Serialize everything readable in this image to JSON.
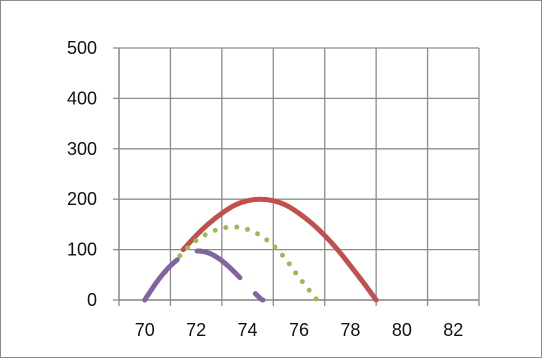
{
  "chart_data": {
    "type": "line",
    "title": "",
    "xlabel": "",
    "ylabel": "",
    "xlim": [
      69,
      83
    ],
    "ylim": [
      0,
      500
    ],
    "x_ticks": [
      70,
      72,
      74,
      76,
      78,
      80,
      82
    ],
    "y_ticks": [
      0,
      100,
      200,
      300,
      400,
      500
    ],
    "x_tick_labels": [
      "70",
      "72",
      "74",
      "76",
      "78",
      "80",
      "82"
    ],
    "y_tick_labels": [
      "0",
      "100",
      "200",
      "300",
      "400",
      "500"
    ],
    "grid": true,
    "legend": "none",
    "series": [
      {
        "color": "#c0504d",
        "style": "solid",
        "x": [
          71.5,
          72.0,
          72.5,
          73.0,
          73.5,
          74.0,
          74.5,
          75.0,
          75.5,
          76.0,
          76.5,
          77.0,
          77.5,
          78.0,
          78.5,
          79.0
        ],
        "y": [
          100,
          128,
          152,
          172,
          188,
          197,
          200,
          197,
          188,
          172,
          152,
          128,
          100,
          68,
          35,
          0
        ]
      },
      {
        "color": "#9bbb59",
        "style": "dotted",
        "x": [
          70.8,
          71.5,
          72.0,
          72.5,
          73.0,
          73.5,
          74.0,
          74.5,
          75.0,
          75.5,
          76.0,
          76.7
        ],
        "y": [
          55,
          95,
          118,
          133,
          142,
          145,
          140,
          128,
          108,
          80,
          45,
          0
        ]
      },
      {
        "color": "#8064a2",
        "style": "dashed",
        "x": [
          70.0,
          70.5,
          71.0,
          71.5,
          72.0,
          72.5,
          73.0,
          73.5,
          74.0,
          74.5,
          74.6
        ],
        "y": [
          0,
          38,
          68,
          88,
          97,
          93,
          78,
          55,
          28,
          3,
          0
        ]
      }
    ]
  }
}
